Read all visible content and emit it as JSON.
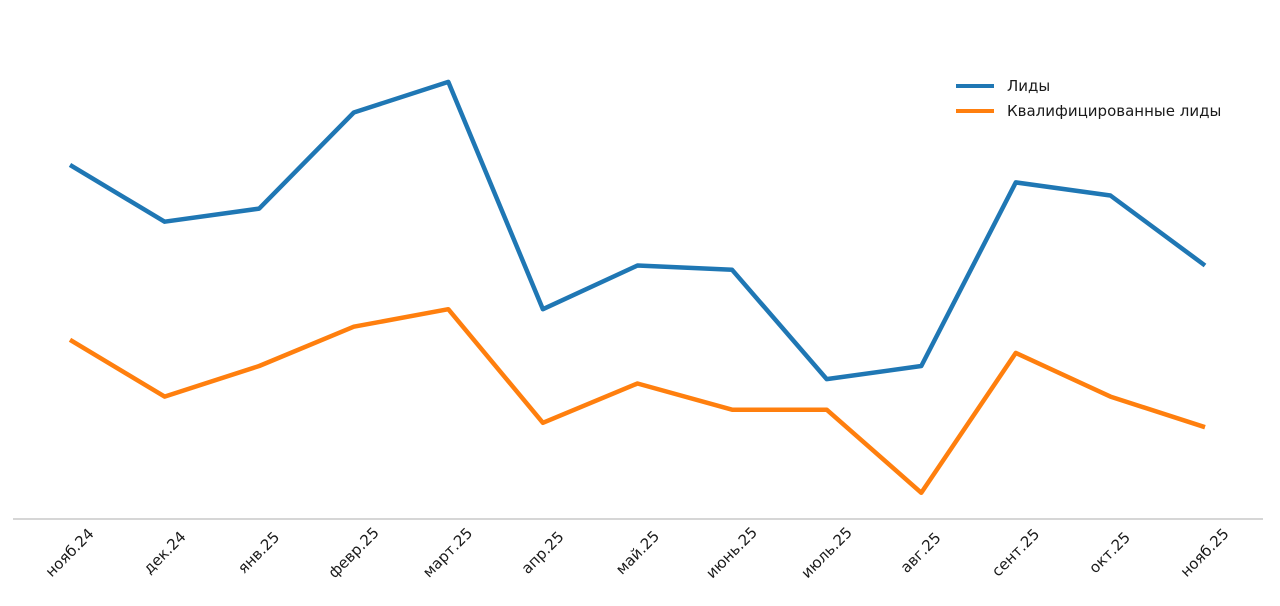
{
  "chart_data": {
    "type": "line",
    "title": "",
    "xlabel": "",
    "ylabel": "",
    "categories": [
      "нояб.24",
      "дек.24",
      "янв.25",
      "февр.25",
      "март.25",
      "апр.25",
      "май.25",
      "июнь.25",
      "июль.25",
      "авг.25",
      "сент.25",
      "окт.25",
      "нояб.25"
    ],
    "series": [
      {
        "name": "Лиды",
        "color": "#1f77b4",
        "values": [
          81,
          68,
          71,
          93,
          100,
          48,
          58,
          57,
          32,
          35,
          77,
          74,
          58
        ]
      },
      {
        "name": "Квалифицированные лиды",
        "color": "#ff7f0e",
        "values": [
          41,
          28,
          35,
          44,
          48,
          22,
          31,
          25,
          25,
          6,
          38,
          28,
          21
        ]
      }
    ],
    "ylim": [
      0,
      105
    ],
    "y_axis_visible": false,
    "grid": false,
    "legend_position": "top-right",
    "axis_line_color": "#c9c9c9",
    "text_color": "#1a1a1a",
    "note": "values are relative units estimated from an unlabeled y-axis"
  }
}
